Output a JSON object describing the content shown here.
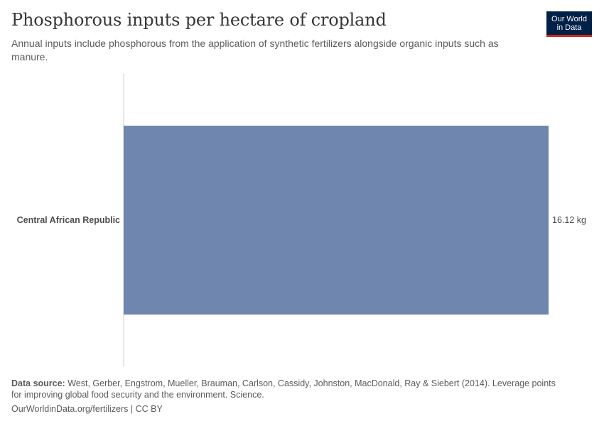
{
  "header": {
    "title": "Phosphorous inputs per hectare of cropland",
    "subtitle": "Annual inputs include phosphorous from the application of synthetic fertilizers alongside organic inputs such as manure."
  },
  "logo": {
    "line1": "Our World",
    "line2": "in Data"
  },
  "footer": {
    "source_label": "Data source:",
    "source_text": "West, Gerber, Engstrom, Mueller, Brauman, Carlson, Cassidy, Johnston, MacDonald, Ray & Siebert (2014). Leverage points for improving global food security and the environment. Science.",
    "url_text": "OurWorldinData.org/fertilizers | CC BY"
  },
  "colors": {
    "bar": "#6f87ae",
    "axis": "#cccccc",
    "logo_bg": "#002147",
    "logo_accent": "#ce261e"
  },
  "chart_data": {
    "type": "bar",
    "orientation": "horizontal",
    "categories": [
      "Central African Republic"
    ],
    "values": [
      16.12
    ],
    "value_labels": [
      "16.12 kg"
    ],
    "unit": "kg",
    "xlim": [
      0,
      16.12
    ]
  }
}
